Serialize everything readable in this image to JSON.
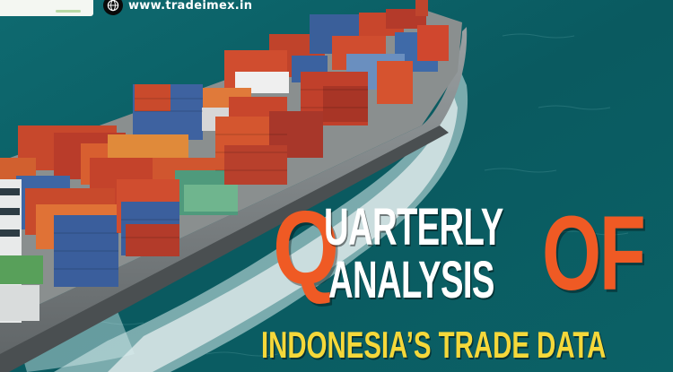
{
  "branding": {
    "website": "www.tradeimex.in",
    "globe_icon": "globe-icon"
  },
  "headline": {
    "initial": "Q",
    "line1": "UARTERLY",
    "line2": "ANALYSIS",
    "connector": "OF",
    "subtitle": "INDONESIA’S TRADE DATA"
  },
  "colors": {
    "sea": "#0b5a5e",
    "accent_orange": "#ef5a24",
    "subtitle_yellow": "#f5d83a",
    "text_white": "#ffffff"
  }
}
